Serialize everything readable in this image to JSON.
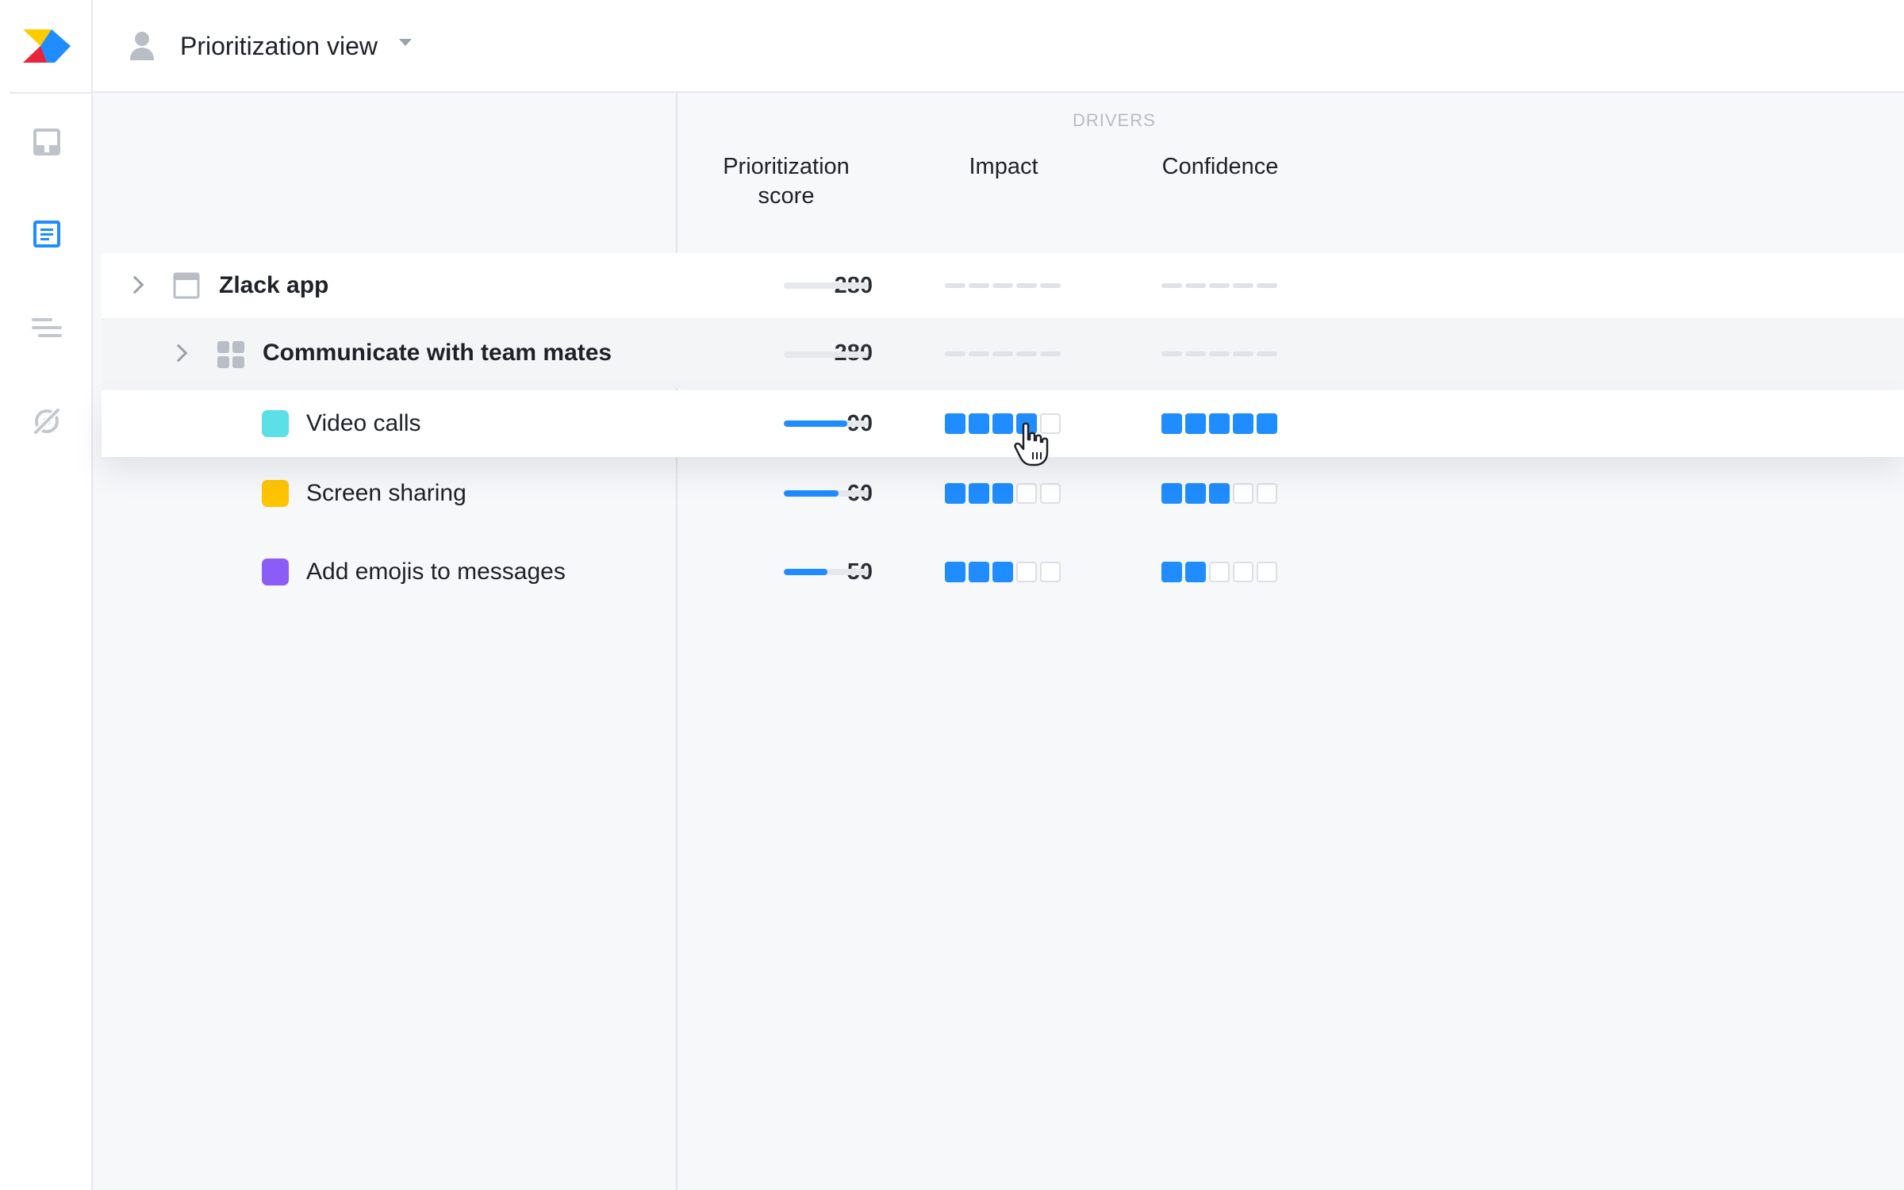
{
  "header": {
    "view_title": "Prioritization view"
  },
  "sidebar": {
    "items": [
      {
        "name": "inbox",
        "icon": "inbox-icon",
        "active": false
      },
      {
        "name": "roadmap-list",
        "icon": "list-document-icon",
        "active": true
      },
      {
        "name": "lines",
        "icon": "lines-icon",
        "active": false
      },
      {
        "name": "insights",
        "icon": "eye-slash-icon",
        "active": false
      }
    ]
  },
  "columns": {
    "group_label": "DRIVERS",
    "score_line1": "Prioritization",
    "score_line2": "score",
    "impact": "Impact",
    "confidence": "Confidence"
  },
  "rows": [
    {
      "title": "Zlack app",
      "score": "280",
      "score_fill_pct": null,
      "impact": null,
      "confidence": null,
      "icon": "window-icon"
    },
    {
      "title": "Communicate with team mates",
      "score": "280",
      "score_fill_pct": null,
      "impact": null,
      "confidence": null,
      "icon": "grid-icon"
    },
    {
      "title": "Video calls",
      "score": "90",
      "score_fill_pct": 75,
      "impact": 4,
      "confidence": 5,
      "color": "#5ae0e6"
    },
    {
      "title": "Screen sharing",
      "score": "60",
      "score_fill_pct": 65,
      "impact": 3,
      "confidence": 3,
      "color": "#ffc400"
    },
    {
      "title": "Add emojis to messages",
      "score": "50",
      "score_fill_pct": 52,
      "impact": 3,
      "confidence": 2,
      "color": "#8b5cf6"
    }
  ],
  "colors": {
    "accent": "#1f8cff",
    "muted": "#dcdfe4"
  }
}
